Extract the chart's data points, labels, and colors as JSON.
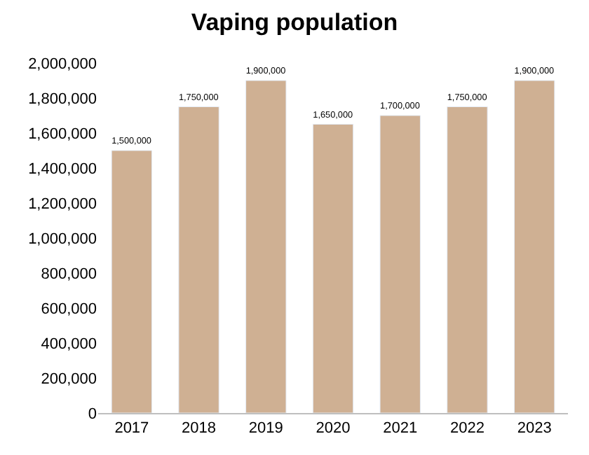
{
  "chart_data": {
    "type": "bar",
    "title": "Vaping population",
    "categories": [
      "2017",
      "2018",
      "2019",
      "2020",
      "2021",
      "2022",
      "2023"
    ],
    "values": [
      1500000,
      1750000,
      1900000,
      1650000,
      1700000,
      1750000,
      1900000
    ],
    "color": "#cfb093",
    "ylim": [
      0,
      2000000
    ],
    "yticks": [
      {
        "value": 0,
        "label": "0"
      },
      {
        "value": 200000,
        "label": "200,000"
      },
      {
        "value": 400000,
        "label": "400,000"
      },
      {
        "value": 600000,
        "label": "600,000"
      },
      {
        "value": 800000,
        "label": "800,000"
      },
      {
        "value": 1000000,
        "label": "1,000,000"
      },
      {
        "value": 1200000,
        "label": "1,200,000"
      },
      {
        "value": 1400000,
        "label": "1,400,000"
      },
      {
        "value": 1600000,
        "label": "1,600,000"
      },
      {
        "value": 1800000,
        "label": "1,800,000"
      },
      {
        "value": 2000000,
        "label": "2,000,000"
      }
    ],
    "value_labels": [
      "1,500,000",
      "1,750,000",
      "1,900,000",
      "1,650,000",
      "1,700,000",
      "1,750,000",
      "1,900,000"
    ],
    "grid": false,
    "legend": false
  }
}
